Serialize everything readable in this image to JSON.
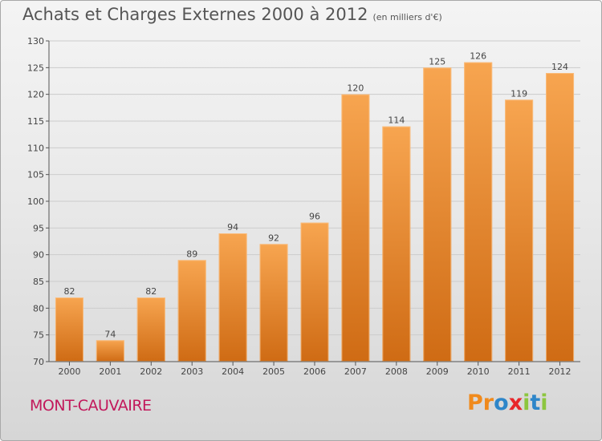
{
  "header": {
    "title": "Achats et Charges Externes 2000 à 2012",
    "subtitle": "(en milliers d'€)"
  },
  "footer": {
    "place": "MONT-CAUVAIRE",
    "logo_letters": [
      "P",
      "r",
      "o",
      "x",
      "i",
      "t",
      "i"
    ],
    "logo_colors": [
      "#f08a1c",
      "#f08a1c",
      "#2e86c9",
      "#e8262a",
      "#8dc63f",
      "#2e86c9",
      "#8dc63f"
    ]
  },
  "colors": {
    "bar_top": "#f7a550",
    "bar_bottom": "#cf6b14",
    "grid": "#cccccc",
    "axis": "#555555"
  },
  "chart_data": {
    "type": "bar",
    "categories": [
      "2000",
      "2001",
      "2002",
      "2003",
      "2004",
      "2005",
      "2006",
      "2007",
      "2008",
      "2009",
      "2010",
      "2011",
      "2012"
    ],
    "values": [
      82,
      74,
      82,
      89,
      94,
      92,
      96,
      120,
      114,
      125,
      126,
      119,
      124
    ],
    "ylim": [
      70,
      130
    ],
    "yticks": [
      70,
      75,
      80,
      85,
      90,
      95,
      100,
      105,
      110,
      115,
      120,
      125,
      130
    ],
    "grid": true
  }
}
